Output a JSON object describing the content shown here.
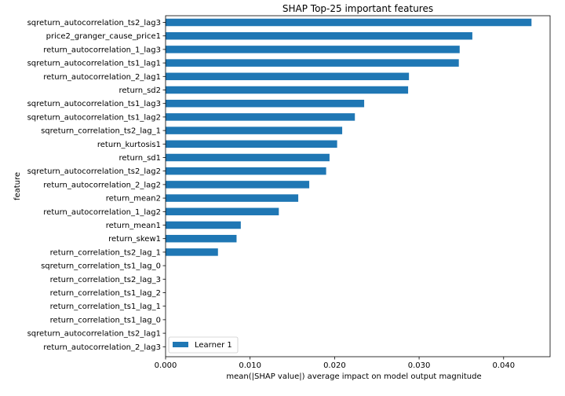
{
  "chart_data": {
    "type": "bar",
    "orientation": "horizontal",
    "title": "SHAP Top-25 important features",
    "xlabel": "mean(|SHAP value|) average impact on model output magnitude",
    "ylabel": "feature",
    "xlim": [
      0,
      0.0455
    ],
    "xticks": [
      0,
      0.01,
      0.02,
      0.03,
      0.04
    ],
    "xtick_labels": [
      "0.000",
      "0.010",
      "0.020",
      "0.030",
      "0.040"
    ],
    "grid": false,
    "legend_position": "bottom-left",
    "bar_color": "#1f77b4",
    "categories": [
      "sqreturn_autocorrelation_ts2_lag3",
      "price2_granger_cause_price1",
      "return_autocorrelation_1_lag3",
      "sqreturn_autocorrelation_ts1_lag1",
      "return_autocorrelation_2_lag1",
      "return_sd2",
      "sqreturn_autocorrelation_ts1_lag3",
      "sqreturn_autocorrelation_ts1_lag2",
      "sqreturn_correlation_ts2_lag_1",
      "return_kurtosis1",
      "return_sd1",
      "sqreturn_autocorrelation_ts2_lag2",
      "return_autocorrelation_2_lag2",
      "return_mean2",
      "return_autocorrelation_1_lag2",
      "return_mean1",
      "return_skew1",
      "return_correlation_ts2_lag_1",
      "sqreturn_correlation_ts1_lag_0",
      "return_correlation_ts2_lag_3",
      "return_correlation_ts1_lag_2",
      "return_correlation_ts1_lag_1",
      "return_correlation_ts1_lag_0",
      "sqreturn_autocorrelation_ts2_lag1",
      "return_autocorrelation_2_lag3"
    ],
    "series": [
      {
        "name": "Learner 1",
        "values": [
          0.0433,
          0.0363,
          0.0348,
          0.0347,
          0.0288,
          0.0287,
          0.0235,
          0.0224,
          0.0209,
          0.0203,
          0.0194,
          0.019,
          0.017,
          0.0157,
          0.0134,
          0.0089,
          0.0084,
          0.0062,
          0,
          0,
          0,
          0,
          0,
          0,
          0
        ]
      }
    ]
  }
}
